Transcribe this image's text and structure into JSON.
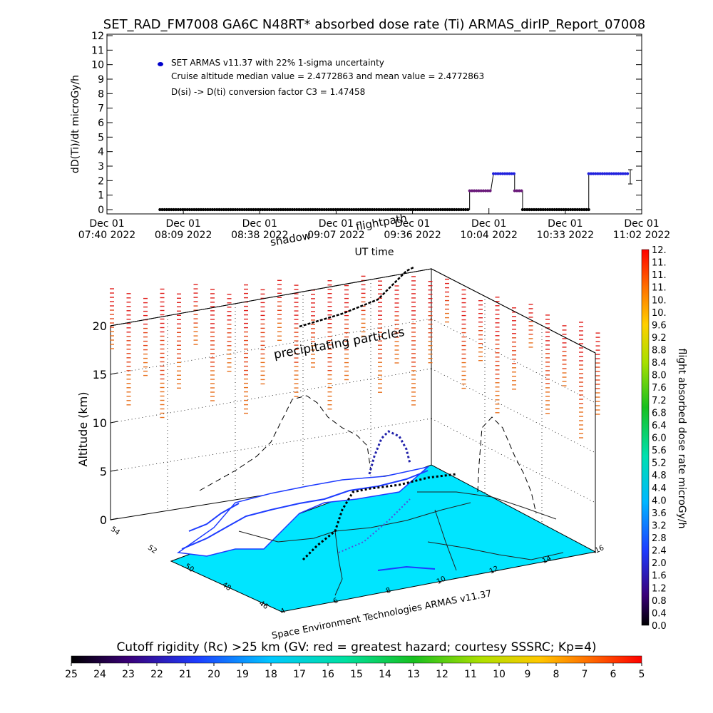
{
  "header": {
    "title": "SET_RAD_FM7008  GA6C N48RT* absorbed dose rate (Ti) ARMAS_dirIP_Report_07008"
  },
  "chart_data": [
    {
      "type": "scatter",
      "ylabel": "dD(Ti)/dt microGy/h",
      "xlabel": "UT time",
      "ylim": [
        0,
        12
      ],
      "yticks": [
        "0",
        "1",
        "2",
        "3",
        "4",
        "5",
        "6",
        "7",
        "8",
        "9",
        "10",
        "11",
        "12"
      ],
      "xticks": [
        {
          "date": "Dec 01",
          "time": "07:40 2022"
        },
        {
          "date": "Dec 01",
          "time": "08:09 2022"
        },
        {
          "date": "Dec 01",
          "time": "08:38 2022"
        },
        {
          "date": "Dec 01",
          "time": "09:07 2022"
        },
        {
          "date": "Dec 01",
          "time": "09:36 2022"
        },
        {
          "date": "Dec 01",
          "time": "10:04 2022"
        },
        {
          "date": "Dec 01",
          "time": "10:33 2022"
        },
        {
          "date": "Dec 01",
          "time": "11:02 2022"
        }
      ],
      "legend": {
        "series_label": "SET ARMAS v11.37 with 22% 1-sigma uncertainty",
        "note1": "Cruise altitude median value = 2.4772863 and mean value = 2.4772863",
        "note2": "D(si) -> D(ti) conversion factor C3 = 1.47458"
      },
      "series": [
        {
          "name": "SET ARMAS v11.37 with 22% 1-sigma uncertainty",
          "segments": [
            {
              "x0": "08:00",
              "x1": "09:57",
              "y": 0.0
            },
            {
              "x0": "09:57",
              "x1": "10:05",
              "y": 1.3
            },
            {
              "x0": "10:06",
              "x1": "10:14",
              "y": 2.48
            },
            {
              "x0": "10:14",
              "x1": "10:17",
              "y": 1.3
            },
            {
              "x0": "10:17",
              "x1": "10:42",
              "y": 0.0
            },
            {
              "x0": "10:42",
              "x1": "10:57",
              "y": 2.48
            }
          ]
        }
      ]
    },
    {
      "type": "scatter",
      "title": "",
      "zlabel": "Altitude (km)",
      "ztick_labels": [
        "0",
        "5",
        "10",
        "15",
        "20"
      ],
      "lat_ticks": [
        "54",
        "52",
        "50",
        "48",
        "46"
      ],
      "lon_ticks": [
        "4",
        "6",
        "8",
        "10",
        "12",
        "14",
        "16"
      ],
      "annotations": [
        "flightpath",
        "shadow",
        "precipitating particles"
      ],
      "credit": "Space Environment Technologies ARMAS v11.37"
    }
  ],
  "colorbar_right": {
    "label": "flight absorbed dose rate microGy/h",
    "ticks": [
      "0.0",
      "0.4",
      "0.8",
      "1.2",
      "1.6",
      "2.0",
      "2.4",
      "2.8",
      "3.2",
      "3.6",
      "4.0",
      "4.4",
      "4.8",
      "5.2",
      "5.6",
      "6.0",
      "6.4",
      "6.8",
      "7.2",
      "7.6",
      "8.0",
      "8.4",
      "8.8",
      "9.2",
      "9.6",
      "10.",
      "10.",
      "11.",
      "11.",
      "11.",
      "12."
    ]
  },
  "colorbar_bottom": {
    "label": "Cutoff rigidity (Rc) >25 km (GV: red = greatest hazard; courtesy SSSRC; Kp=4)",
    "ticks": [
      "25",
      "24",
      "23",
      "22",
      "21",
      "20",
      "19",
      "18",
      "17",
      "16",
      "15",
      "14",
      "13",
      "12",
      "11",
      "10",
      "9",
      "8",
      "7",
      "6",
      "5"
    ]
  },
  "colors": {
    "series": "#0000cc",
    "floor": "#00e5ff",
    "particles": "#e0401c"
  }
}
